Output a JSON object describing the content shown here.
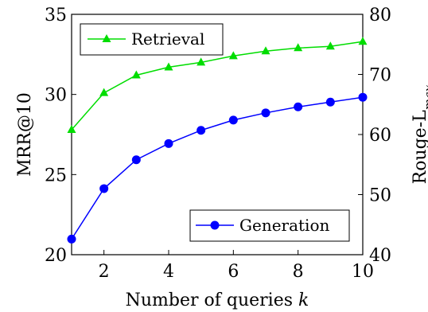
{
  "chart_data": {
    "type": "line",
    "xlabel_text": "Number of queries ",
    "xlabel_var": "k",
    "ylabel_left": "MRR@10",
    "ylabel_right_main": "Rouge-L",
    "ylabel_right_sub": "max",
    "x": [
      1,
      2,
      3,
      4,
      5,
      6,
      7,
      8,
      9,
      10
    ],
    "xlim": [
      1,
      10
    ],
    "xticks": [
      2,
      4,
      6,
      8,
      10
    ],
    "ylim_left": [
      20,
      35
    ],
    "yticks_left": [
      20,
      25,
      30,
      35
    ],
    "ylim_right": [
      40,
      80
    ],
    "yticks_right": [
      40,
      50,
      60,
      70,
      80
    ],
    "grid": false,
    "series": [
      {
        "name": "Retrieval",
        "axis": "left",
        "color": "#00dd00",
        "marker": "triangle",
        "legend_position": "top-left",
        "values": [
          27.8,
          30.1,
          31.2,
          31.7,
          32.0,
          32.4,
          32.7,
          32.9,
          33.0,
          33.3
        ]
      },
      {
        "name": "Generation",
        "axis": "right",
        "color": "#0000ff",
        "marker": "circle",
        "legend_position": "bottom-right",
        "values": [
          42.6,
          51.0,
          55.8,
          58.5,
          60.7,
          62.4,
          63.6,
          64.6,
          65.4,
          66.2
        ]
      }
    ]
  }
}
